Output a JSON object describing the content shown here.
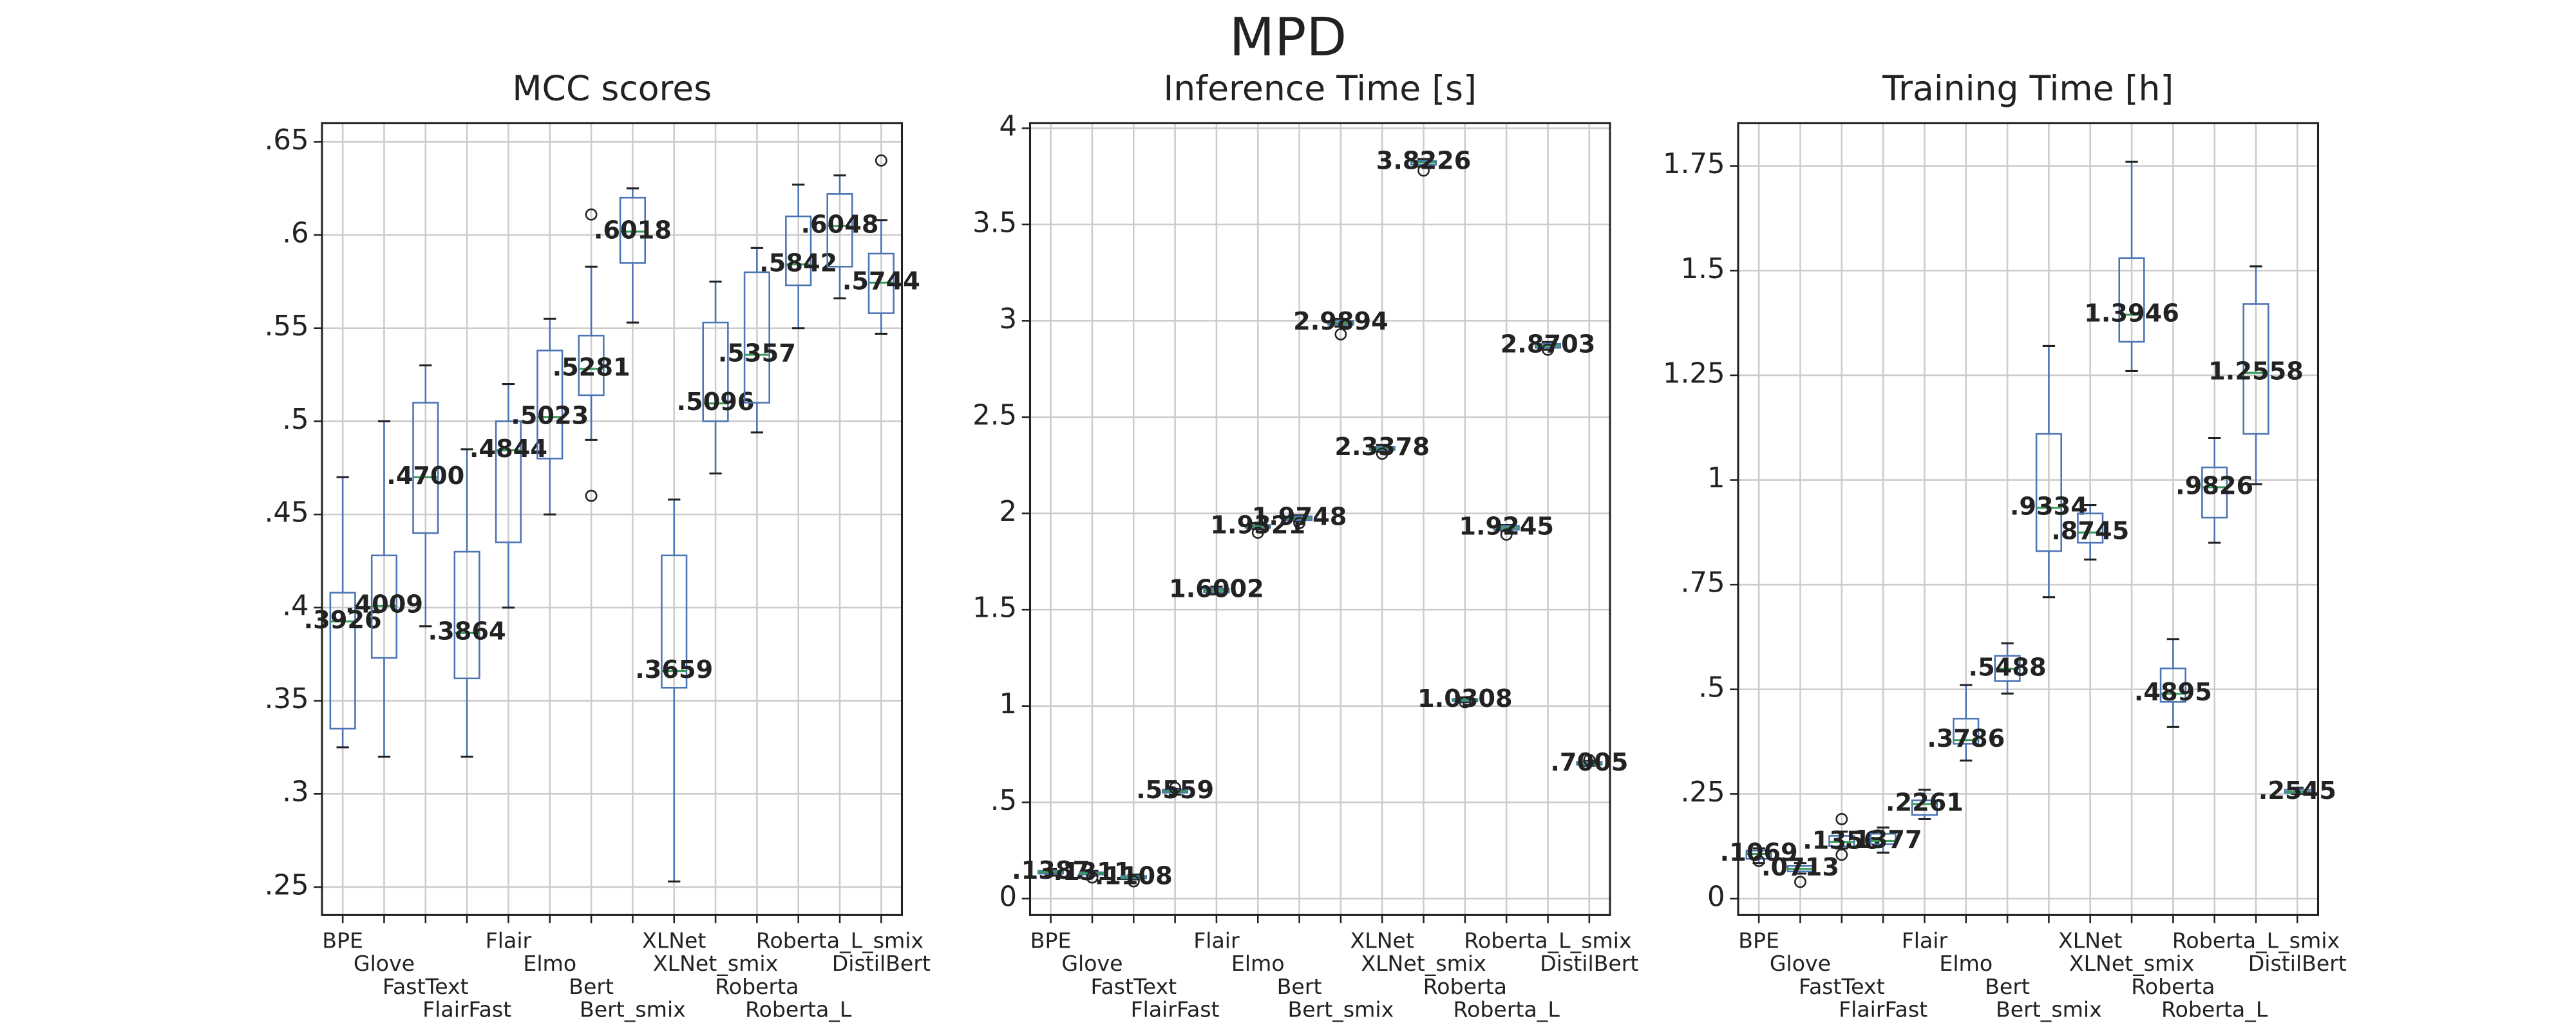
{
  "title": "MPD",
  "chart_data": [
    {
      "type": "box",
      "title": "MCC scores",
      "categories": [
        "BPE",
        "Glove",
        "FastText",
        "FlairFast",
        "Flair",
        "Elmo",
        "Bert",
        "Bert_smix",
        "XLNet",
        "XLNet_smix",
        "Roberta",
        "Roberta_L",
        "Roberta_L_smix",
        "DistilBert"
      ],
      "values": [
        0.3926,
        0.4009,
        0.47,
        0.3864,
        0.4844,
        0.5023,
        0.5281,
        0.6018,
        0.3659,
        0.5096,
        0.5357,
        0.5842,
        0.6048,
        0.5744
      ],
      "value_labels": [
        ".3926",
        ".4009",
        ".4700",
        ".3864",
        ".4844",
        ".5023",
        ".5281",
        ".6018",
        ".3659",
        ".5096",
        ".5357",
        ".5842",
        ".6048",
        ".5744"
      ],
      "q1": [
        0.335,
        0.373,
        0.44,
        0.362,
        0.435,
        0.48,
        0.514,
        0.585,
        0.357,
        0.5,
        0.51,
        0.573,
        0.583,
        0.558
      ],
      "q3": [
        0.408,
        0.428,
        0.51,
        0.43,
        0.5,
        0.538,
        0.546,
        0.62,
        0.428,
        0.553,
        0.58,
        0.61,
        0.622,
        0.59
      ],
      "whisker_low": [
        0.325,
        0.32,
        0.39,
        0.32,
        0.4,
        0.45,
        0.49,
        0.553,
        0.253,
        0.472,
        0.494,
        0.55,
        0.566,
        0.547
      ],
      "whisker_high": [
        0.47,
        0.5,
        0.53,
        0.485,
        0.52,
        0.555,
        0.583,
        0.625,
        0.458,
        0.575,
        0.593,
        0.627,
        0.632,
        0.608
      ],
      "outliers": [
        [],
        [],
        [],
        [],
        [],
        [],
        [
          0.611,
          0.46
        ],
        [],
        [],
        [],
        [],
        [],
        [],
        [
          0.64
        ]
      ],
      "ylim": [
        0.235,
        0.66
      ],
      "yticks": [
        {
          "value": 0.25,
          "label": ".25"
        },
        {
          "value": 0.3,
          "label": ".3"
        },
        {
          "value": 0.35,
          "label": ".35"
        },
        {
          "value": 0.4,
          "label": ".4"
        },
        {
          "value": 0.45,
          "label": ".45"
        },
        {
          "value": 0.5,
          "label": ".5"
        },
        {
          "value": 0.55,
          "label": ".55"
        },
        {
          "value": 0.6,
          "label": ".6"
        },
        {
          "value": 0.65,
          "label": ".65"
        }
      ],
      "grid": true,
      "color": "#4a74b4",
      "median_color": "#3a9a5a"
    },
    {
      "type": "box",
      "title": "Inference Time [s]",
      "categories": [
        "BPE",
        "Glove",
        "FastText",
        "FlairFast",
        "Flair",
        "Elmo",
        "Bert",
        "Bert_smix",
        "XLNet",
        "XLNet_smix",
        "Roberta",
        "Roberta_L",
        "Roberta_L_smix",
        "DistilBert"
      ],
      "values": [
        0.1387,
        0.1311,
        0.1108,
        0.5559,
        1.6002,
        1.9321,
        1.9748,
        2.9894,
        2.3378,
        3.8226,
        1.0308,
        1.9245,
        2.8703,
        0.7005
      ],
      "value_labels": [
        ".1387",
        ".1311",
        ".1108",
        ".5559",
        "1.6002",
        "1.9321",
        "1.9748",
        "2.9894",
        "2.3378",
        "3.8226",
        "1.0308",
        "1.9245",
        "2.8703",
        ".7005"
      ],
      "q1": [
        0.13,
        0.125,
        0.105,
        0.55,
        1.59,
        1.925,
        1.965,
        2.98,
        2.33,
        3.81,
        1.025,
        1.915,
        2.86,
        0.695
      ],
      "q3": [
        0.145,
        0.137,
        0.118,
        0.565,
        1.61,
        1.94,
        1.985,
        3.0,
        2.345,
        3.83,
        1.037,
        1.935,
        2.88,
        0.71
      ],
      "whisker_low": [
        0.12,
        0.12,
        0.1,
        0.54,
        1.58,
        1.92,
        1.96,
        2.97,
        2.32,
        3.8,
        1.02,
        1.91,
        2.85,
        0.69
      ],
      "whisker_high": [
        0.155,
        0.145,
        0.125,
        0.57,
        1.62,
        1.95,
        1.99,
        3.01,
        2.355,
        3.84,
        1.045,
        1.94,
        2.89,
        0.715
      ],
      "outliers": [
        [],
        [
          0.11
        ],
        [
          0.09
        ],
        [
          0.575
        ],
        [],
        [
          1.9
        ],
        [
          1.95
        ],
        [
          2.93
        ],
        [
          2.31
        ],
        [
          3.78
        ],
        [
          1.02
        ],
        [
          1.89
        ],
        [
          2.85
        ],
        [
          0.72
        ]
      ],
      "ylim": [
        -0.085,
        4.026
      ],
      "yticks": [
        0,
        {
          "value": 0.5,
          "label": ".5"
        },
        1,
        1.5,
        2,
        2.5,
        3,
        3.5,
        4
      ],
      "grid": true,
      "color": "#4a74b4",
      "median_color": "#3a9a5a"
    },
    {
      "type": "box",
      "title": "Training Time [h]",
      "categories": [
        "BPE",
        "Glove",
        "FastText",
        "FlairFast",
        "Flair",
        "Elmo",
        "Bert",
        "Bert_smix",
        "XLNet",
        "XLNet_smix",
        "Roberta",
        "Roberta_L",
        "Roberta_L_smix",
        "DistilBert"
      ],
      "values": [
        0.1069,
        0.0713,
        0.1356,
        0.1377,
        0.2261,
        0.3786,
        0.5488,
        0.9334,
        0.8745,
        1.3946,
        0.4895,
        0.9826,
        1.2558,
        0.2545
      ],
      "value_labels": [
        ".1069",
        ".0713",
        ".1356",
        ".1377",
        ".2261",
        ".3786",
        ".5488",
        ".9334",
        ".8745",
        "1.3946",
        ".4895",
        ".9826",
        "1.2558",
        ".2545"
      ],
      "q1": [
        0.095,
        0.065,
        0.125,
        0.13,
        0.2,
        0.37,
        0.52,
        0.83,
        0.85,
        1.33,
        0.47,
        0.91,
        1.11,
        0.253
      ],
      "q3": [
        0.115,
        0.078,
        0.15,
        0.155,
        0.235,
        0.43,
        0.58,
        1.11,
        0.92,
        1.53,
        0.55,
        1.03,
        1.42,
        0.26
      ],
      "whisker_low": [
        0.085,
        0.06,
        0.12,
        0.11,
        0.19,
        0.33,
        0.49,
        0.72,
        0.81,
        1.26,
        0.41,
        0.85,
        0.99,
        0.25
      ],
      "whisker_high": [
        0.12,
        0.085,
        0.16,
        0.17,
        0.26,
        0.51,
        0.61,
        1.32,
        0.94,
        1.76,
        0.62,
        1.1,
        1.51,
        0.265
      ],
      "outliers": [
        [
          0.09
        ],
        [
          0.04
        ],
        [
          0.19,
          0.105
        ],
        [],
        [],
        [],
        [],
        [],
        [],
        [],
        [],
        [],
        [],
        []
      ],
      "ylim": [
        -0.039,
        1.852
      ],
      "yticks": [
        0,
        {
          "value": 0.25,
          "label": ".25"
        },
        {
          "value": 0.5,
          "label": ".5"
        },
        {
          "value": 0.75,
          "label": ".75"
        },
        1,
        1.25,
        1.5,
        1.75
      ],
      "grid": true,
      "color": "#4a74b4",
      "median_color": "#3a9a5a"
    }
  ]
}
